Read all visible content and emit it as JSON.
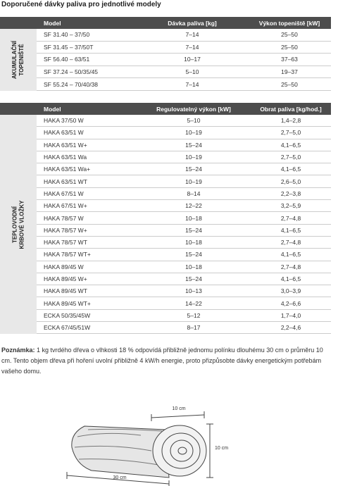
{
  "title": "Doporučené dávky paliva pro jednotlivé modely",
  "tables": [
    {
      "group_label": [
        "AKUMULAČNÍ",
        "TOPENIŠTĚ"
      ],
      "columns": [
        "Model",
        "Dávka paliva [kg]",
        "Výkon topeniště [kW]"
      ],
      "rows": [
        [
          "SF 31.40 – 37/50",
          "7–14",
          "25–50"
        ],
        [
          "SF 31.45 – 37/50T",
          "7–14",
          "25–50"
        ],
        [
          "SF 56.40 – 63/51",
          "10–17",
          "37–63"
        ],
        [
          "SF 37.24 – 50/35/45",
          "5–10",
          "19–37"
        ],
        [
          "SF 55.24 – 70/40/38",
          "7–14",
          "25–50"
        ]
      ]
    },
    {
      "group_label": [
        "TEPLOVODNÍ",
        "KRBOVÉ VLOŽKY"
      ],
      "columns": [
        "Model",
        "Regulovatelný výkon [kW]",
        "Obrat paliva [kg/hod.]"
      ],
      "rows": [
        [
          "HAKA 37/50 W",
          "5–10",
          "1,4–2,8"
        ],
        [
          "HAKA 63/51 W",
          "10–19",
          "2,7–5,0"
        ],
        [
          "HAKA 63/51 W+",
          "15–24",
          "4,1–6,5"
        ],
        [
          "HAKA 63/51 Wa",
          "10–19",
          "2,7–5,0"
        ],
        [
          "HAKA 63/51 Wa+",
          "15–24",
          "4,1–6,5"
        ],
        [
          "HAKA 63/51 WT",
          "10–19",
          "2,6–5,0"
        ],
        [
          "HAKA 67/51 W",
          "8–14",
          "2,2–3,8"
        ],
        [
          "HAKA 67/51 W+",
          "12–22",
          "3,2–5,9"
        ],
        [
          "HAKA 78/57 W",
          "10–18",
          "2,7–4,8"
        ],
        [
          "HAKA 78/57 W+",
          "15–24",
          "4,1–6,5"
        ],
        [
          "HAKA 78/57 WT",
          "10–18",
          "2,7–4,8"
        ],
        [
          "HAKA 78/57 WT+",
          "15–24",
          "4,1–6,5"
        ],
        [
          "HAKA 89/45 W",
          "10–18",
          "2,7–4,8"
        ],
        [
          "HAKA 89/45 W+",
          "15–24",
          "4,1–6,5"
        ],
        [
          "HAKA 89/45 WT",
          "10–13",
          "3,0–3,9"
        ],
        [
          "HAKA 89/45 WT+",
          "14–22",
          "4,2–6,6"
        ],
        [
          "ECKA 50/35/45W",
          "5–12",
          "1,7–4,0"
        ],
        [
          "ECKA 67/45/51W",
          "8–17",
          "2,2–4,6"
        ]
      ]
    }
  ],
  "note": {
    "label": "Poznámka:",
    "text": " 1 kg tvrdého dřeva o vlhkosti 18 % odpovídá přibližně jednomu polínku dlouhému 30 cm o průměru 10 cm. Tento objem dřeva při hoření uvolní přibližně 4 kW/h energie, proto přizpůsobte dávky energetickým potřebám vašeho domu."
  },
  "figure": {
    "width_label": "10 cm",
    "height_label": "10 cm",
    "length_label": "30 cm"
  }
}
